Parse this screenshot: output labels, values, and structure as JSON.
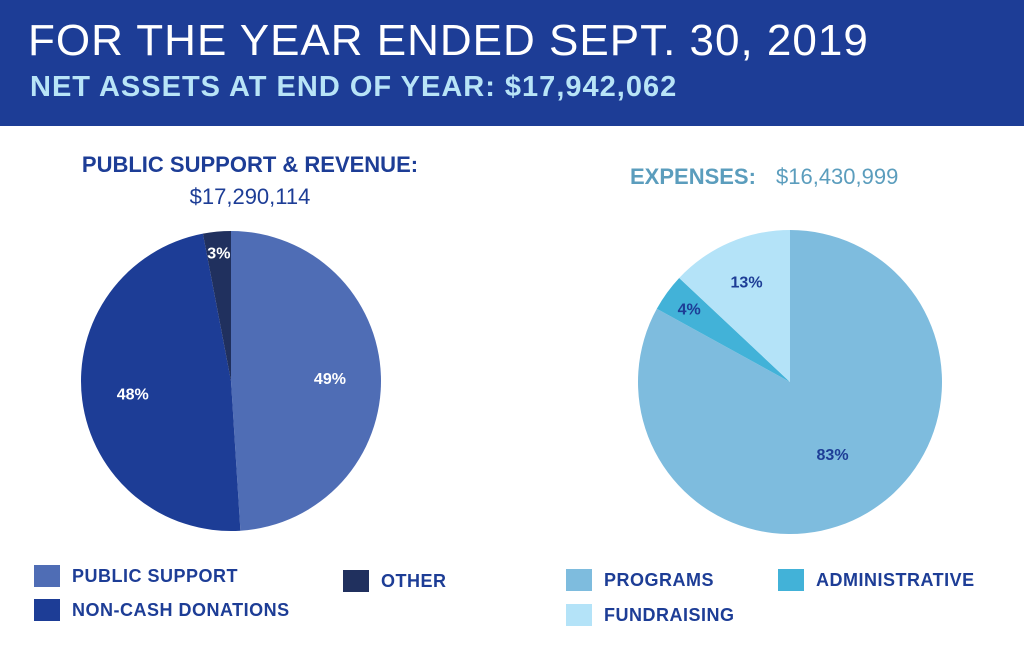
{
  "header": {
    "title": "FOR THE YEAR ENDED SEPT. 30, 2019",
    "subtitle": "NET ASSETS AT END OF YEAR: $17,942,062"
  },
  "revenue": {
    "title": "PUBLIC SUPPORT & REVENUE:",
    "amount": "$17,290,114"
  },
  "expenses": {
    "title": "EXPENSES:",
    "amount": "$16,430,999"
  },
  "colors": {
    "header_bg": "#1d3d96",
    "public_support": "#4f6db5",
    "non_cash": "#1d3d96",
    "other": "#20305e",
    "programs": "#7ebcde",
    "administrative": "#42b2d8",
    "fundraising": "#b4e3f8"
  },
  "chart_data": [
    {
      "type": "pie",
      "title": "PUBLIC SUPPORT & REVENUE:",
      "categories": [
        "PUBLIC SUPPORT",
        "NON-CASH DONATIONS",
        "OTHER"
      ],
      "values": [
        49,
        48,
        3
      ],
      "labels": [
        "49%",
        "48%",
        "3%"
      ],
      "colors": [
        "#4f6db5",
        "#1d3d96",
        "#20305e"
      ],
      "label_colors": [
        "#ffffff",
        "#ffffff",
        "#ffffff"
      ],
      "legend_position": "bottom"
    },
    {
      "type": "pie",
      "title": "EXPENSES:",
      "categories": [
        "PROGRAMS",
        "ADMINISTRATIVE",
        "FUNDRAISING"
      ],
      "values": [
        83,
        4,
        13
      ],
      "labels": [
        "83%",
        "4%",
        "13%"
      ],
      "colors": [
        "#7ebcde",
        "#42b2d8",
        "#b4e3f8"
      ],
      "label_colors": [
        "#1d3d96",
        "#1d3d96",
        "#1d3d96"
      ],
      "legend_position": "bottom"
    }
  ]
}
